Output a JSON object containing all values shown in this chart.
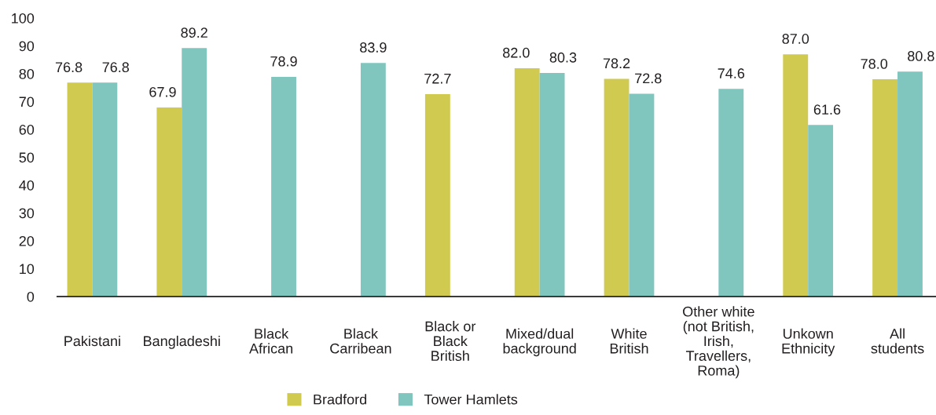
{
  "chart_data": {
    "type": "bar",
    "categories": [
      "Pakistani",
      "Bangladeshi",
      "Black\nAfrican",
      "Black\nCarribean",
      "Black or\nBlack\nBritish",
      "Mixed/dual\nbackground",
      "White\nBritish",
      "Other white\n(not British,\nIrish,\nTravellers,\nRoma)",
      "Unkown\nEthnicity",
      "All\nstudents"
    ],
    "series": [
      {
        "name": "Bradford",
        "color": "#d0cb50",
        "values": [
          76.8,
          67.9,
          null,
          null,
          72.7,
          82.0,
          78.2,
          null,
          87.0,
          78.0
        ],
        "value_labels": [
          "76.8",
          "67.9",
          null,
          null,
          "72.7",
          "82.0",
          "78.2",
          null,
          "87.0",
          "78.0"
        ]
      },
      {
        "name": "Tower Hamlets",
        "color": "#80c6bf",
        "values": [
          76.8,
          89.2,
          78.9,
          83.9,
          null,
          80.3,
          72.8,
          74.6,
          61.6,
          80.8
        ],
        "value_labels": [
          "76.8",
          "89.2",
          "78.9",
          "83.9",
          null,
          "80.3",
          "72.8",
          "74.6",
          "61.6",
          "80.8"
        ]
      }
    ],
    "ylim": [
      0,
      100
    ],
    "yticks": [
      0,
      10,
      20,
      30,
      40,
      50,
      60,
      70,
      80,
      90,
      100
    ],
    "grid": false,
    "legend": "bottom"
  }
}
